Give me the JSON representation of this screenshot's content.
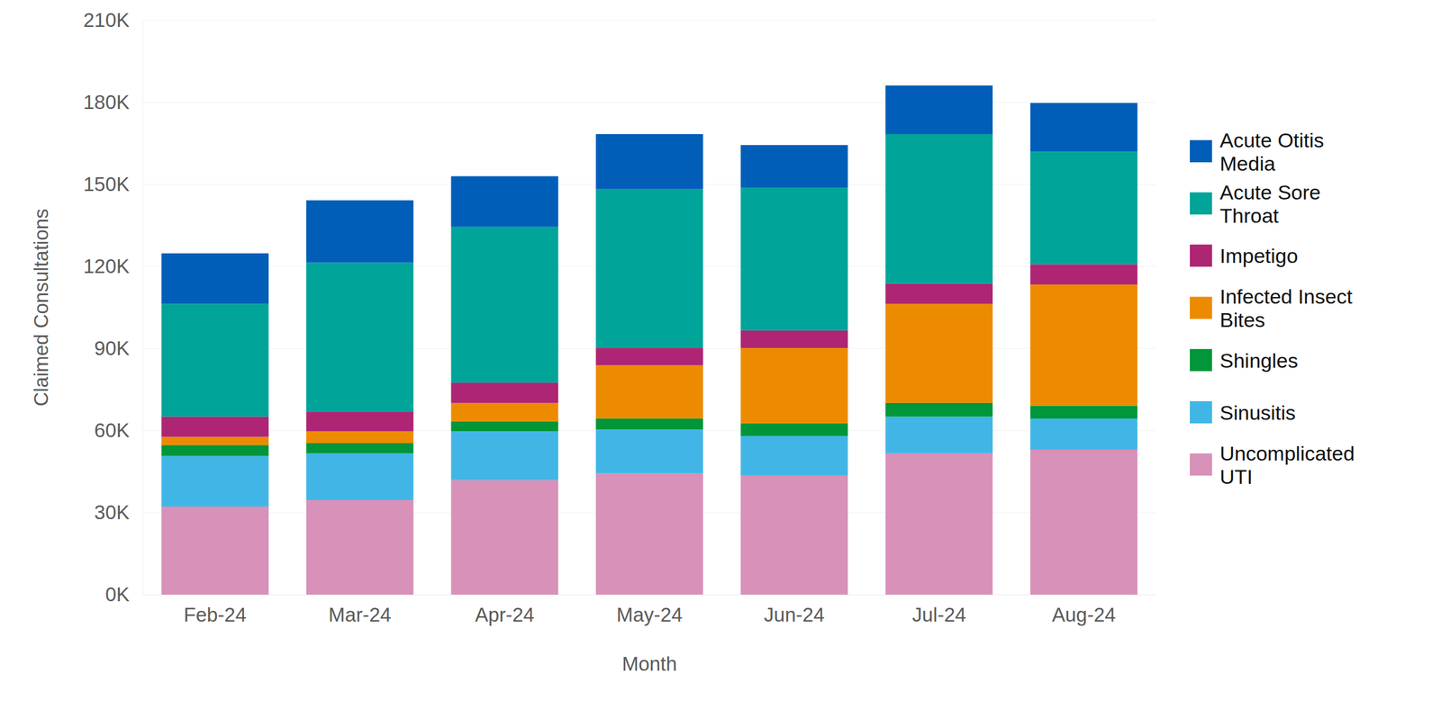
{
  "chart_data": {
    "type": "bar",
    "stacked": true,
    "grid": true,
    "legend": "right",
    "x_label": "Month",
    "y_label": "Claimed Consultations",
    "categories": [
      "Feb-24",
      "Mar-24",
      "Apr-24",
      "May-24",
      "Jun-24",
      "Jul-24",
      "Aug-24"
    ],
    "ylim": [
      0,
      210000
    ],
    "yticks": [
      {
        "value": 0,
        "label": "0K"
      },
      {
        "value": 30000,
        "label": "30K"
      },
      {
        "value": 60000,
        "label": "60K"
      },
      {
        "value": 90000,
        "label": "90K"
      },
      {
        "value": 120000,
        "label": "120K"
      },
      {
        "value": 150000,
        "label": "150K"
      },
      {
        "value": 180000,
        "label": "180K"
      },
      {
        "value": 210000,
        "label": "210K"
      }
    ],
    "series": [
      {
        "name": "Uncomplicated UTI",
        "color": "#d891b8",
        "values": [
          32200,
          34600,
          41900,
          44300,
          43600,
          51700,
          53000
        ]
      },
      {
        "name": "Sinusitis",
        "color": "#41b6e6",
        "values": [
          18500,
          17100,
          17800,
          16100,
          14400,
          13400,
          11400
        ]
      },
      {
        "name": "Shingles",
        "color": "#009639",
        "values": [
          4000,
          3700,
          3700,
          4000,
          4700,
          5000,
          4700
        ]
      },
      {
        "name": "Infected Insect Bites",
        "color": "#ed8b00",
        "values": [
          3000,
          4300,
          6700,
          19500,
          27500,
          36200,
          44300
        ]
      },
      {
        "name": "Impetigo",
        "color": "#ae2573",
        "values": [
          7400,
          7100,
          7400,
          6300,
          6400,
          7400,
          7400
        ]
      },
      {
        "name": "Acute Sore Throat",
        "color": "#00a499",
        "values": [
          41200,
          54600,
          57000,
          58100,
          52300,
          54700,
          41200
        ]
      },
      {
        "name": "Acute Otitis Media",
        "color": "#005eb8",
        "values": [
          18500,
          22800,
          18500,
          20100,
          15500,
          17800,
          17800
        ]
      }
    ]
  }
}
